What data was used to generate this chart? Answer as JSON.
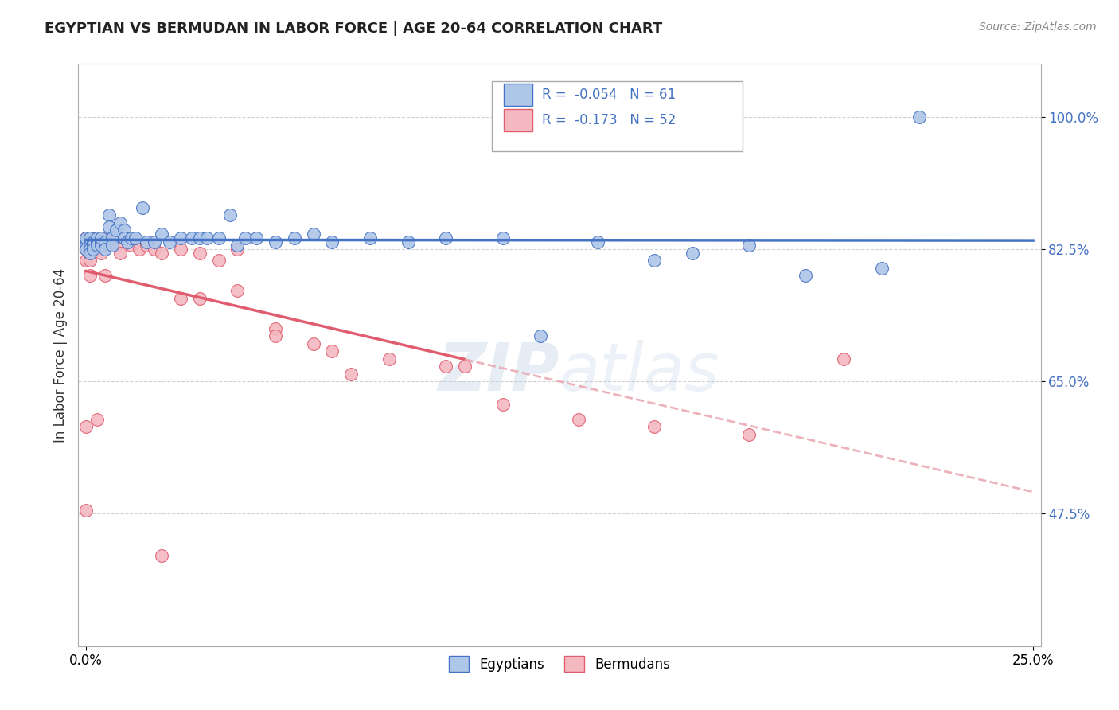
{
  "title": "EGYPTIAN VS BERMUDAN IN LABOR FORCE | AGE 20-64 CORRELATION CHART",
  "source_text": "Source: ZipAtlas.com",
  "ylabel": "In Labor Force | Age 20-64",
  "xlim": [
    -0.002,
    0.252
  ],
  "ylim": [
    0.3,
    1.07
  ],
  "yticks": [
    0.475,
    0.65,
    0.825,
    1.0
  ],
  "ytick_labels": [
    "47.5%",
    "65.0%",
    "82.5%",
    "100.0%"
  ],
  "xtick_labels": [
    "0.0%",
    "25.0%"
  ],
  "xticks": [
    0.0,
    0.25
  ],
  "r_egyptian": -0.054,
  "n_egyptian": 61,
  "r_bermudan": -0.173,
  "n_bermudan": 52,
  "color_egyptian": "#aec6e8",
  "color_bermudan": "#f4b8c1",
  "line_color_egyptian": "#4472c4",
  "line_color_bermudan": "#e05c6e",
  "line_color_bermudan_dash": "#e8a0aa",
  "background_color": "#ffffff",
  "watermark_color": "#b8cce4",
  "legend_label_egyptian": "Egyptians",
  "legend_label_bermudan": "Bermudans",
  "egy_x": [
    0.0,
    0.0,
    0.0,
    0.0,
    0.001,
    0.001,
    0.001,
    0.001,
    0.001,
    0.002,
    0.002,
    0.002,
    0.003,
    0.003,
    0.003,
    0.004,
    0.004,
    0.004,
    0.005,
    0.005,
    0.006,
    0.006,
    0.007,
    0.007,
    0.008,
    0.009,
    0.01,
    0.01,
    0.011,
    0.012,
    0.013,
    0.015,
    0.016,
    0.018,
    0.02,
    0.022,
    0.025,
    0.028,
    0.03,
    0.032,
    0.035,
    0.038,
    0.04,
    0.042,
    0.045,
    0.05,
    0.055,
    0.06,
    0.065,
    0.075,
    0.085,
    0.095,
    0.11,
    0.12,
    0.135,
    0.15,
    0.16,
    0.175,
    0.19,
    0.21,
    0.22
  ],
  "egy_y": [
    0.835,
    0.83,
    0.825,
    0.84,
    0.835,
    0.83,
    0.825,
    0.82,
    0.84,
    0.835,
    0.83,
    0.825,
    0.835,
    0.84,
    0.83,
    0.835,
    0.83,
    0.84,
    0.835,
    0.825,
    0.87,
    0.855,
    0.84,
    0.83,
    0.85,
    0.86,
    0.85,
    0.84,
    0.835,
    0.84,
    0.84,
    0.88,
    0.835,
    0.835,
    0.845,
    0.835,
    0.84,
    0.84,
    0.84,
    0.84,
    0.84,
    0.87,
    0.83,
    0.84,
    0.84,
    0.835,
    0.84,
    0.845,
    0.835,
    0.84,
    0.835,
    0.84,
    0.84,
    0.71,
    0.835,
    0.81,
    0.82,
    0.83,
    0.79,
    0.8,
    1.0
  ],
  "ber_x": [
    0.0,
    0.0,
    0.0,
    0.0,
    0.001,
    0.001,
    0.001,
    0.001,
    0.001,
    0.002,
    0.002,
    0.003,
    0.003,
    0.004,
    0.004,
    0.005,
    0.006,
    0.007,
    0.008,
    0.009,
    0.01,
    0.012,
    0.014,
    0.016,
    0.018,
    0.02,
    0.025,
    0.03,
    0.035,
    0.04,
    0.05,
    0.065,
    0.08,
    0.095,
    0.11,
    0.13,
    0.15,
    0.175,
    0.2
  ],
  "ber_y": [
    0.84,
    0.835,
    0.825,
    0.81,
    0.84,
    0.835,
    0.83,
    0.82,
    0.81,
    0.84,
    0.83,
    0.84,
    0.83,
    0.83,
    0.82,
    0.84,
    0.835,
    0.83,
    0.83,
    0.82,
    0.84,
    0.83,
    0.825,
    0.83,
    0.825,
    0.82,
    0.825,
    0.82,
    0.81,
    0.825,
    0.72,
    0.69,
    0.68,
    0.67,
    0.62,
    0.6,
    0.59,
    0.58,
    0.68
  ],
  "ber_outliers_x": [
    0.0,
    0.0,
    0.001,
    0.003,
    0.005,
    0.02,
    0.025,
    0.03,
    0.04,
    0.05,
    0.06,
    0.07,
    0.1
  ],
  "ber_outliers_y": [
    0.59,
    0.48,
    0.79,
    0.6,
    0.79,
    0.42,
    0.76,
    0.76,
    0.77,
    0.71,
    0.7,
    0.66,
    0.67
  ]
}
